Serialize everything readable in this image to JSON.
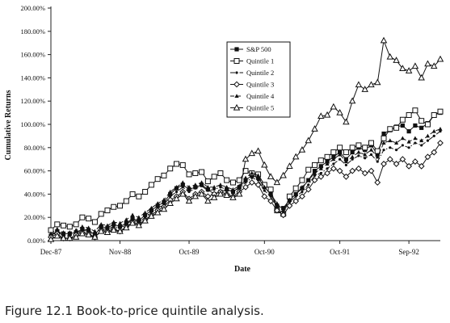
{
  "caption": "Figure 12.1 Book-to-price quintile analysis.",
  "chart_data": {
    "type": "line",
    "xlabel": "Date",
    "ylabel": "Cumulative Returns",
    "ylim": [
      0,
      200
    ],
    "y_ticks": [
      0,
      20,
      40,
      60,
      80,
      100,
      120,
      140,
      160,
      180,
      200
    ],
    "y_tick_labels": [
      "0.00%",
      "20.00%",
      "40.00%",
      "60.00%",
      "80.00%",
      "100.00%",
      "120.00%",
      "140.00%",
      "160.00%",
      "180.00%",
      "200.00%"
    ],
    "x_tick_labels": [
      "Dec-87",
      "Nov-88",
      "Oct-89",
      "Oct-90",
      "Oct-91",
      "Sep-92"
    ],
    "x_tick_months": [
      0,
      11,
      22,
      34,
      46,
      57
    ],
    "x_range_months": [
      0,
      62
    ],
    "legend_position": "top-center",
    "grid": false,
    "series": [
      {
        "name": "S&P 500",
        "marker": "filled-square",
        "dash": "",
        "values": [
          4,
          8,
          6,
          6,
          7,
          10,
          9,
          5,
          12,
          11,
          14,
          12,
          15,
          19,
          17,
          22,
          26,
          30,
          33,
          40,
          45,
          48,
          44,
          46,
          48,
          44,
          40,
          42,
          44,
          42,
          46,
          52,
          56,
          54,
          46,
          40,
          30,
          28,
          35,
          40,
          45,
          52,
          60,
          64,
          68,
          72,
          76,
          70,
          76,
          80,
          78,
          82,
          74,
          92,
          95,
          98,
          99,
          94,
          99,
          97,
          101,
          108,
          110
        ]
      },
      {
        "name": "Quintile 1",
        "marker": "open-square",
        "dash": "",
        "values": [
          9,
          14,
          13,
          12,
          14,
          20,
          19,
          16,
          23,
          26,
          29,
          30,
          34,
          40,
          38,
          42,
          48,
          53,
          56,
          62,
          66,
          65,
          57,
          58,
          59,
          51,
          55,
          58,
          52,
          50,
          52,
          60,
          58,
          57,
          48,
          44,
          26,
          23,
          38,
          45,
          52,
          61,
          65,
          69,
          72,
          76,
          80,
          76,
          80,
          82,
          80,
          84,
          77,
          88,
          96,
          97,
          104,
          108,
          112,
          103,
          100,
          108,
          111
        ]
      },
      {
        "name": "Quintile 2",
        "marker": "dot",
        "dash": "6 2 1.5 2",
        "values": [
          5,
          8,
          4,
          4,
          6,
          9,
          8,
          6,
          10,
          10,
          12,
          11,
          14,
          18,
          16,
          20,
          25,
          28,
          31,
          38,
          42,
          46,
          42,
          45,
          47,
          43,
          44,
          46,
          44,
          42,
          45,
          50,
          54,
          52,
          43,
          38,
          28,
          24,
          33,
          38,
          42,
          48,
          56,
          58,
          62,
          66,
          70,
          65,
          70,
          73,
          71,
          74,
          68,
          78,
          80,
          78,
          82,
          80,
          84,
          82,
          86,
          90,
          94
        ]
      },
      {
        "name": "Quintile 3",
        "marker": "open-diamond",
        "dash": "",
        "values": [
          3,
          6,
          2,
          2,
          5,
          7,
          6,
          3,
          9,
          8,
          10,
          8,
          12,
          16,
          14,
          18,
          22,
          26,
          29,
          35,
          38,
          42,
          36,
          40,
          42,
          38,
          40,
          42,
          40,
          38,
          42,
          46,
          50,
          48,
          38,
          34,
          26,
          22,
          30,
          34,
          38,
          44,
          52,
          55,
          58,
          62,
          60,
          55,
          60,
          62,
          58,
          60,
          50,
          66,
          70,
          66,
          70,
          64,
          68,
          64,
          72,
          76,
          84
        ]
      },
      {
        "name": "Quintile 4",
        "marker": "filled-triangle",
        "dash": "5 3",
        "values": [
          6,
          10,
          7,
          7,
          9,
          12,
          11,
          8,
          14,
          13,
          16,
          15,
          18,
          22,
          20,
          24,
          28,
          32,
          35,
          42,
          46,
          50,
          46,
          48,
          50,
          46,
          46,
          48,
          46,
          44,
          47,
          54,
          58,
          56,
          46,
          40,
          32,
          26,
          35,
          40,
          46,
          52,
          58,
          62,
          66,
          70,
          74,
          68,
          72,
          76,
          74,
          78,
          72,
          84,
          86,
          84,
          88,
          85,
          88,
          86,
          90,
          94,
          96
        ]
      },
      {
        "name": "Quintile 5",
        "marker": "open-triangle",
        "dash": "",
        "values": [
          1,
          4,
          2,
          2,
          3,
          6,
          5,
          3,
          8,
          7,
          9,
          8,
          11,
          15,
          13,
          17,
          21,
          24,
          27,
          32,
          36,
          40,
          34,
          38,
          40,
          34,
          37,
          40,
          39,
          37,
          40,
          70,
          75,
          77,
          65,
          55,
          50,
          56,
          64,
          72,
          78,
          86,
          96,
          107,
          108,
          115,
          110,
          102,
          120,
          134,
          130,
          134,
          136,
          172,
          158,
          155,
          148,
          146,
          150,
          140,
          152,
          150,
          156
        ]
      }
    ]
  }
}
